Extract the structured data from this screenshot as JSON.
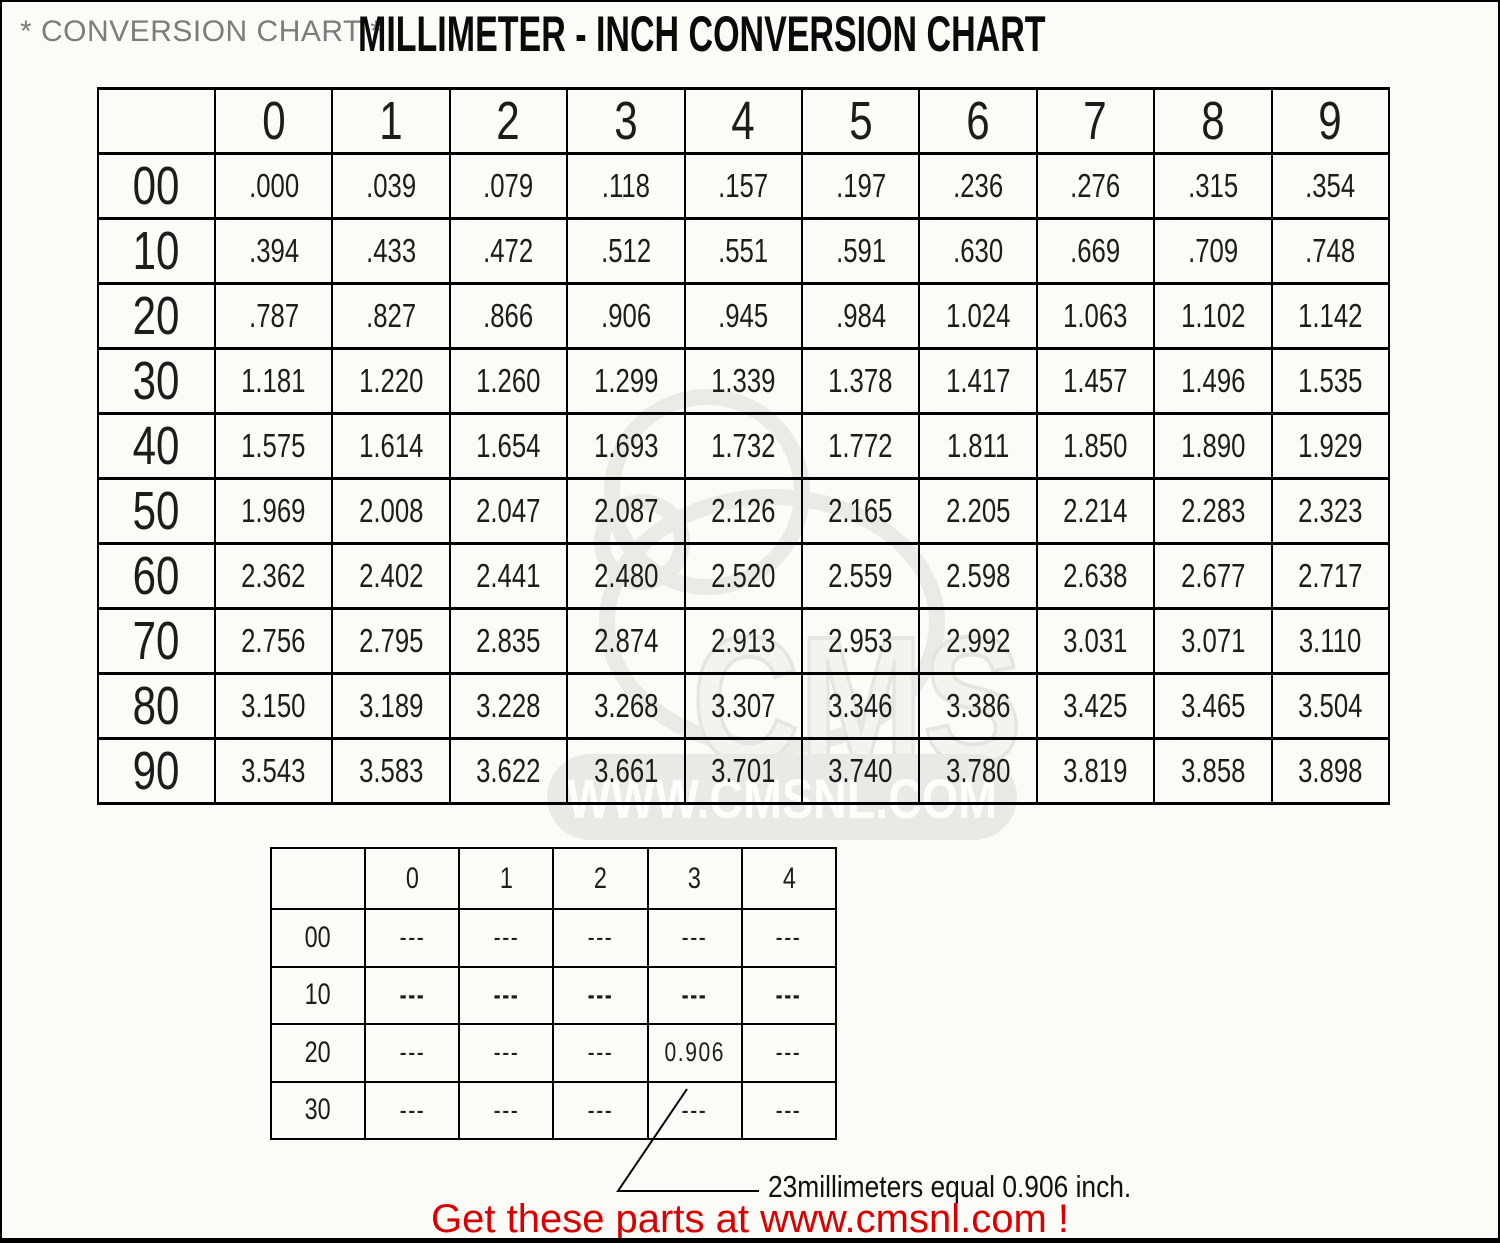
{
  "header": {
    "subtitle": "* CONVERSION CHART *",
    "title": "MILLIMETER - INCH CONVERSION CHART"
  },
  "main_table": {
    "columns": [
      "0",
      "1",
      "2",
      "3",
      "4",
      "5",
      "6",
      "7",
      "8",
      "9"
    ],
    "rows": [
      {
        "label": "00",
        "values": [
          ".000",
          ".039",
          ".079",
          ".118",
          ".157",
          ".197",
          ".236",
          ".276",
          ".315",
          ".354"
        ]
      },
      {
        "label": "10",
        "values": [
          ".394",
          ".433",
          ".472",
          ".512",
          ".551",
          ".591",
          ".630",
          ".669",
          ".709",
          ".748"
        ]
      },
      {
        "label": "20",
        "values": [
          ".787",
          ".827",
          ".866",
          ".906",
          ".945",
          ".984",
          "1.024",
          "1.063",
          "1.102",
          "1.142"
        ]
      },
      {
        "label": "30",
        "values": [
          "1.181",
          "1.220",
          "1.260",
          "1.299",
          "1.339",
          "1.378",
          "1.417",
          "1.457",
          "1.496",
          "1.535"
        ]
      },
      {
        "label": "40",
        "values": [
          "1.575",
          "1.614",
          "1.654",
          "1.693",
          "1.732",
          "1.772",
          "1.811",
          "1.850",
          "1.890",
          "1.929"
        ]
      },
      {
        "label": "50",
        "values": [
          "1.969",
          "2.008",
          "2.047",
          "2.087",
          "2.126",
          "2.165",
          "2.205",
          "2.214",
          "2.283",
          "2.323"
        ]
      },
      {
        "label": "60",
        "values": [
          "2.362",
          "2.402",
          "2.441",
          "2.480",
          "2.520",
          "2.559",
          "2.598",
          "2.638",
          "2.677",
          "2.717"
        ]
      },
      {
        "label": "70",
        "values": [
          "2.756",
          "2.795",
          "2.835",
          "2.874",
          "2.913",
          "2.953",
          "2.992",
          "3.031",
          "3.071",
          "3.110"
        ]
      },
      {
        "label": "80",
        "values": [
          "3.150",
          "3.189",
          "3.228",
          "3.268",
          "3.307",
          "3.346",
          "3.386",
          "3.425",
          "3.465",
          "3.504"
        ]
      },
      {
        "label": "90",
        "values": [
          "3.543",
          "3.583",
          "3.622",
          "3.661",
          "3.701",
          "3.740",
          "3.780",
          "3.819",
          "3.858",
          "3.898"
        ]
      }
    ]
  },
  "example_table": {
    "columns": [
      "0",
      "1",
      "2",
      "3",
      "4"
    ],
    "rows": [
      {
        "label": "00",
        "values": [
          "---",
          "---",
          "---",
          "---",
          "---"
        ]
      },
      {
        "label": "10",
        "bold": true,
        "values": [
          "---",
          "---",
          "---",
          "---",
          "---"
        ]
      },
      {
        "label": "20",
        "values": [
          "---",
          "---",
          "---",
          "0.906",
          "---"
        ]
      },
      {
        "label": "30",
        "values": [
          "---",
          "---",
          "---",
          "---",
          "---"
        ]
      }
    ]
  },
  "annotation": {
    "text": "23millimeters equal 0.906 inch."
  },
  "footer": {
    "text": "Get these parts at www.cmsnl.com !",
    "color": "#d80000"
  },
  "watermark": {
    "logo_text": "CMS",
    "site_text": "WWW.CMSNL.COM",
    "pill_color": "#e9e9e6",
    "text_color": "#fdfdfb"
  }
}
